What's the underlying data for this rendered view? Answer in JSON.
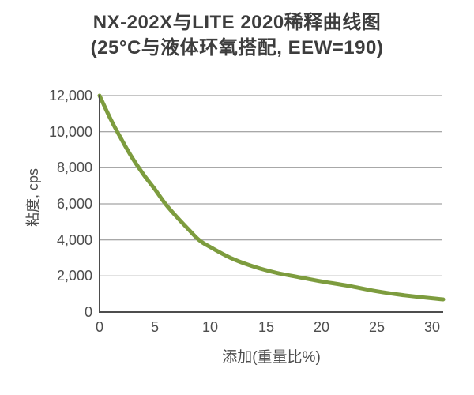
{
  "title": {
    "line1": "NX-202X与LITE 2020稀释曲线图",
    "line2": "(25°C与液体环氧搭配, EEW=190)"
  },
  "chart_data": {
    "type": "line",
    "title": "NX-202X与LITE 2020稀释曲线图 (25°C与液体环氧搭配, EEW=190)",
    "xlabel": "添加(重量比%)",
    "ylabel": "粘度, cps",
    "xlim": [
      0,
      31
    ],
    "ylim": [
      0,
      12000
    ],
    "xticks": [
      0,
      5,
      10,
      15,
      20,
      25,
      30
    ],
    "xtick_labels": [
      "0",
      "5",
      "10",
      "15",
      "20",
      "25",
      "30"
    ],
    "yticks": [
      0,
      2000,
      4000,
      6000,
      8000,
      10000,
      12000
    ],
    "ytick_labels": [
      "0",
      "2,000",
      "4,000",
      "6,000",
      "8,000",
      "10,000",
      "12,000"
    ],
    "grid": "horizontal",
    "legend": "none",
    "series": [
      {
        "name": "NX-202X dilution curve",
        "color": "#7D9C3E",
        "x": [
          0,
          1,
          2,
          3,
          4,
          5,
          6,
          7,
          8,
          9,
          10,
          12,
          14,
          16,
          18,
          20,
          22.5,
          25,
          27.5,
          30,
          31
        ],
        "y": [
          12000,
          10700,
          9550,
          8500,
          7600,
          6800,
          5950,
          5250,
          4600,
          3980,
          3600,
          2950,
          2500,
          2170,
          1930,
          1700,
          1450,
          1150,
          930,
          760,
          700
        ]
      }
    ]
  },
  "colors": {
    "curve": "#7D9C3E",
    "grid": "#8C8C8C",
    "axis": "#4D4D4D",
    "tick_text": "#4D4D4D",
    "title_text": "#3D3D3D",
    "background": "#FFFFFF"
  }
}
